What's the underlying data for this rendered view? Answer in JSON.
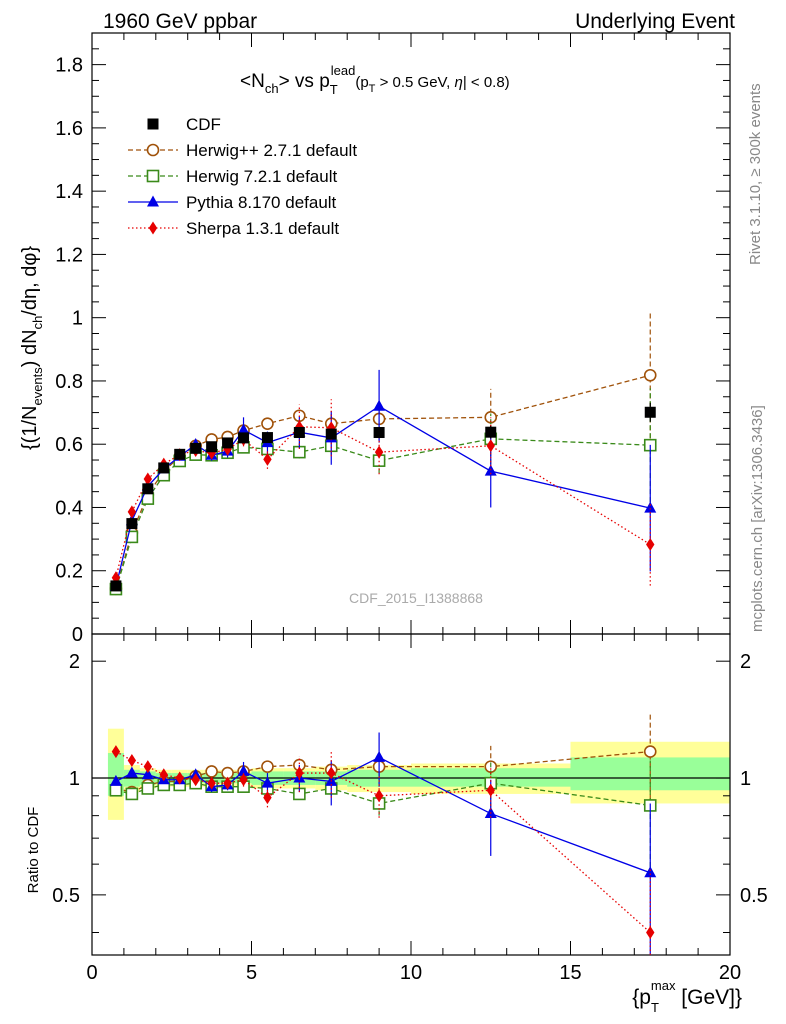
{
  "header": {
    "left": "1960 GeV ppbar",
    "right": "Underlying Event"
  },
  "side_text": {
    "rivet": "Rivet 3.1.10, ≥ 300k events",
    "mcplots": "mcplots.cern.ch [arXiv:1306.3436]"
  },
  "watermark": "CDF_2015_I1388868",
  "colors": {
    "cdf": "#000000",
    "herwigpp": "#a0520a",
    "herwig7": "#3a8a1a",
    "pythia": "#0000e6",
    "sherpa": "#e60000",
    "band_yellow": "#ffff99",
    "band_green": "#99ff99"
  },
  "chart_data": [
    {
      "type": "scatter",
      "panel": "main",
      "title": "<N_ch> vs p_T^lead (p_T > 0.5 GeV, |η| < 0.8)",
      "title_parts": {
        "lhs": "<N",
        "lhs_sub": "ch",
        "mid": "> vs p",
        "mid_sub": "T",
        "mid_sup": "lead",
        "cond_a": "(p",
        "cond_sub": "T",
        "cond_b": " > 0.5 GeV, ",
        "cond_eta": "η",
        "cond_c": "| < 0.8)"
      },
      "ylabel": "{(1/N_events) dN_ch/dη, dφ}",
      "ylabel_parts": {
        "a": "{(1/N",
        "a_sub": "events",
        "b": ") dN",
        "b_sub": "ch",
        "c": "/dη, dφ}"
      },
      "xlim": [
        0,
        20
      ],
      "ylim": [
        0,
        1.9
      ],
      "yticks": [
        0,
        0.2,
        0.4,
        0.6,
        0.8,
        1,
        1.2,
        1.4,
        1.6,
        1.8
      ],
      "ytick_labels": [
        "0",
        "0.2",
        "0.4",
        "0.6",
        "0.8",
        "1",
        "1.2",
        "1.4",
        "1.6",
        "1.8"
      ],
      "legend_position": "top-left",
      "series": [
        {
          "name": "CDF",
          "key": "cdf",
          "style": "square-filled",
          "line": "none",
          "x": [
            0.75,
            1.25,
            1.75,
            2.25,
            2.75,
            3.25,
            3.75,
            4.25,
            4.75,
            5.5,
            6.5,
            7.5,
            9.0,
            12.5,
            17.5
          ],
          "y": [
            0.152,
            0.349,
            0.459,
            0.525,
            0.568,
            0.587,
            0.592,
            0.604,
            0.62,
            0.621,
            0.637,
            0.632,
            0.637,
            0.638,
            0.701
          ],
          "err": [
            0.005,
            0.008,
            0.01,
            0.01,
            0.01,
            0.01,
            0.01,
            0.011,
            0.012,
            0.015,
            0.015,
            0.017,
            0.018,
            0.02,
            0.03
          ]
        },
        {
          "name": "Herwig++ 2.7.1 default",
          "key": "herwigpp",
          "style": "circle-open",
          "line": "dashed",
          "x": [
            0.75,
            1.25,
            1.75,
            2.25,
            2.75,
            3.25,
            3.75,
            4.25,
            4.75,
            5.5,
            6.5,
            7.5,
            9.0,
            12.5,
            17.5
          ],
          "y": [
            0.143,
            0.32,
            0.44,
            0.515,
            0.56,
            0.595,
            0.615,
            0.623,
            0.643,
            0.665,
            0.69,
            0.665,
            0.68,
            0.685,
            0.818
          ],
          "err": [
            0.004,
            0.006,
            0.008,
            0.009,
            0.01,
            0.011,
            0.012,
            0.013,
            0.015,
            0.018,
            0.022,
            0.03,
            0.04,
            0.09,
            0.2
          ]
        },
        {
          "name": "Herwig 7.2.1 default",
          "key": "herwig7",
          "style": "square-open",
          "line": "dashed",
          "x": [
            0.75,
            1.25,
            1.75,
            2.25,
            2.75,
            3.25,
            3.75,
            4.25,
            4.75,
            5.5,
            6.5,
            7.5,
            9.0,
            12.5,
            17.5
          ],
          "y": [
            0.142,
            0.307,
            0.428,
            0.502,
            0.547,
            0.567,
            0.565,
            0.573,
            0.59,
            0.585,
            0.575,
            0.595,
            0.548,
            0.617,
            0.597
          ],
          "err": [
            0.004,
            0.006,
            0.008,
            0.009,
            0.01,
            0.011,
            0.012,
            0.013,
            0.015,
            0.018,
            0.02,
            0.028,
            0.04,
            0.08,
            0.18
          ]
        },
        {
          "name": "Pythia 8.170 default",
          "key": "pythia",
          "style": "triangle-filled",
          "line": "solid",
          "x": [
            0.75,
            1.25,
            1.75,
            2.25,
            2.75,
            3.25,
            3.75,
            4.25,
            4.75,
            5.5,
            6.5,
            7.5,
            9.0,
            12.5,
            17.5
          ],
          "y": [
            0.15,
            0.358,
            0.467,
            0.522,
            0.562,
            0.599,
            0.565,
            0.578,
            0.645,
            0.605,
            0.638,
            0.62,
            0.72,
            0.515,
            0.398
          ],
          "err": [
            0.005,
            0.008,
            0.01,
            0.012,
            0.013,
            0.015,
            0.017,
            0.02,
            0.04,
            0.035,
            0.05,
            0.085,
            0.115,
            0.115,
            0.2
          ]
        },
        {
          "name": "Sherpa 1.3.1 default",
          "key": "sherpa",
          "style": "diamond-filled",
          "line": "dotted",
          "x": [
            0.75,
            1.25,
            1.75,
            2.25,
            2.75,
            3.25,
            3.75,
            4.25,
            4.75,
            5.5,
            6.5,
            7.5,
            9.0,
            12.5,
            17.5
          ],
          "y": [
            0.178,
            0.386,
            0.49,
            0.537,
            0.567,
            0.58,
            0.572,
            0.584,
            0.615,
            0.552,
            0.655,
            0.652,
            0.575,
            0.595,
            0.283
          ],
          "err": [
            0.005,
            0.008,
            0.01,
            0.011,
            0.012,
            0.014,
            0.016,
            0.018,
            0.022,
            0.03,
            0.07,
            0.09,
            0.07,
            0.09,
            0.13
          ]
        }
      ]
    },
    {
      "type": "scatter",
      "panel": "ratio",
      "ylabel": "Ratio to CDF",
      "xlabel": "{p_T^max [GeV]}",
      "xlabel_parts": {
        "a": "{p",
        "sub": "T",
        "sup": "max",
        "b": " [GeV]}"
      },
      "xlim": [
        0,
        20
      ],
      "ylim": [
        0.35,
        2.35
      ],
      "xticks": [
        0,
        5,
        10,
        15,
        20
      ],
      "xtick_labels": [
        "0",
        "5",
        "10",
        "15",
        "20"
      ],
      "yticks": [
        0.5,
        1,
        2
      ],
      "ytick_labels": [
        "0.5",
        "1",
        "2"
      ],
      "reference_line": 1,
      "bands": [
        {
          "x0": 0.5,
          "x1": 1.0,
          "yellow": [
            0.78,
            1.34
          ],
          "green": [
            0.9,
            1.16
          ]
        },
        {
          "x0": 1.0,
          "x1": 1.5,
          "yellow": [
            0.92,
            1.08
          ],
          "green": [
            0.95,
            1.05
          ]
        },
        {
          "x0": 1.5,
          "x1": 2.0,
          "yellow": [
            0.94,
            1.06
          ],
          "green": [
            0.96,
            1.04
          ]
        },
        {
          "x0": 2.0,
          "x1": 2.5,
          "yellow": [
            0.95,
            1.05
          ],
          "green": [
            0.97,
            1.03
          ]
        },
        {
          "x0": 2.5,
          "x1": 3.0,
          "yellow": [
            0.95,
            1.05
          ],
          "green": [
            0.97,
            1.03
          ]
        },
        {
          "x0": 3.0,
          "x1": 3.5,
          "yellow": [
            0.95,
            1.05
          ],
          "green": [
            0.97,
            1.03
          ]
        },
        {
          "x0": 3.5,
          "x1": 4.0,
          "yellow": [
            0.95,
            1.05
          ],
          "green": [
            0.97,
            1.03
          ]
        },
        {
          "x0": 4.0,
          "x1": 4.5,
          "yellow": [
            0.95,
            1.05
          ],
          "green": [
            0.97,
            1.03
          ]
        },
        {
          "x0": 4.5,
          "x1": 5.0,
          "yellow": [
            0.95,
            1.05
          ],
          "green": [
            0.97,
            1.03
          ]
        },
        {
          "x0": 5.0,
          "x1": 6.0,
          "yellow": [
            0.94,
            1.06
          ],
          "green": [
            0.96,
            1.04
          ]
        },
        {
          "x0": 6.0,
          "x1": 7.0,
          "yellow": [
            0.94,
            1.06
          ],
          "green": [
            0.96,
            1.04
          ]
        },
        {
          "x0": 7.0,
          "x1": 8.0,
          "yellow": [
            0.93,
            1.07
          ],
          "green": [
            0.96,
            1.04
          ]
        },
        {
          "x0": 8.0,
          "x1": 10.0,
          "yellow": [
            0.92,
            1.08
          ],
          "green": [
            0.95,
            1.05
          ]
        },
        {
          "x0": 10.0,
          "x1": 15.0,
          "yellow": [
            0.91,
            1.09
          ],
          "green": [
            0.95,
            1.06
          ]
        },
        {
          "x0": 15.0,
          "x1": 20.0,
          "yellow": [
            0.86,
            1.24
          ],
          "green": [
            0.93,
            1.13
          ]
        }
      ],
      "series": [
        {
          "key": "herwigpp",
          "style": "circle-open",
          "line": "dashed",
          "x": [
            0.75,
            1.25,
            1.75,
            2.25,
            2.75,
            3.25,
            3.75,
            4.25,
            4.75,
            5.5,
            6.5,
            7.5,
            9.0,
            12.5,
            17.5
          ],
          "y": [
            0.94,
            0.92,
            0.96,
            0.98,
            0.98,
            1.01,
            1.04,
            1.03,
            1.04,
            1.07,
            1.08,
            1.05,
            1.07,
            1.07,
            1.17
          ],
          "err": [
            0.02,
            0.02,
            0.02,
            0.02,
            0.02,
            0.02,
            0.02,
            0.02,
            0.03,
            0.03,
            0.04,
            0.05,
            0.07,
            0.14,
            0.29
          ]
        },
        {
          "key": "herwig7",
          "style": "square-open",
          "line": "dashed",
          "x": [
            0.75,
            1.25,
            1.75,
            2.25,
            2.75,
            3.25,
            3.75,
            4.25,
            4.75,
            5.5,
            6.5,
            7.5,
            9.0,
            12.5,
            17.5
          ],
          "y": [
            0.93,
            0.91,
            0.94,
            0.96,
            0.96,
            0.97,
            0.95,
            0.95,
            0.95,
            0.94,
            0.91,
            0.94,
            0.86,
            0.97,
            0.85
          ],
          "err": [
            0.02,
            0.02,
            0.02,
            0.02,
            0.02,
            0.02,
            0.02,
            0.02,
            0.03,
            0.03,
            0.03,
            0.04,
            0.06,
            0.13,
            0.26
          ]
        },
        {
          "key": "pythia",
          "style": "triangle-filled",
          "line": "solid",
          "x": [
            0.75,
            1.25,
            1.75,
            2.25,
            2.75,
            3.25,
            3.75,
            4.25,
            4.75,
            5.5,
            6.5,
            7.5,
            9.0,
            12.5,
            17.5
          ],
          "y": [
            0.98,
            1.03,
            1.02,
            0.99,
            0.99,
            1.02,
            0.95,
            0.96,
            1.04,
            0.97,
            1.0,
            0.98,
            1.13,
            0.81,
            0.57
          ],
          "err": [
            0.02,
            0.02,
            0.02,
            0.02,
            0.02,
            0.03,
            0.03,
            0.03,
            0.06,
            0.06,
            0.08,
            0.13,
            0.18,
            0.18,
            0.29
          ]
        },
        {
          "key": "sherpa",
          "style": "diamond-filled",
          "line": "dotted",
          "x": [
            0.75,
            1.25,
            1.75,
            2.25,
            2.75,
            3.25,
            3.75,
            4.25,
            4.75,
            5.5,
            6.5,
            7.5,
            9.0,
            12.5,
            17.5
          ],
          "y": [
            1.17,
            1.11,
            1.07,
            1.02,
            1.0,
            0.99,
            0.97,
            0.97,
            0.99,
            0.89,
            1.03,
            1.03,
            0.9,
            0.93,
            0.4
          ],
          "err": [
            0.02,
            0.02,
            0.02,
            0.02,
            0.02,
            0.02,
            0.03,
            0.03,
            0.04,
            0.05,
            0.11,
            0.14,
            0.11,
            0.14,
            0.19
          ]
        }
      ]
    }
  ]
}
